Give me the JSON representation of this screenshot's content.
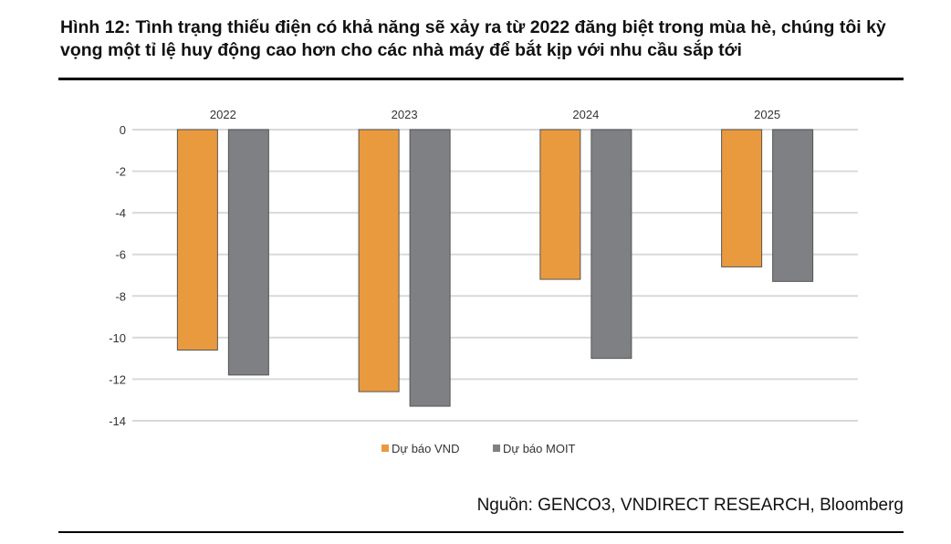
{
  "chart_data": {
    "type": "bar",
    "title": "Hình 12: Tình trạng thiếu điện có khả năng sẽ xảy ra từ 2022 đăng biệt trong mùa hè, chúng tôi kỳ vọng một tỉ lệ huy động cao hơn cho các nhà máy để bắt kịp với nhu cầu sắp tới",
    "categories": [
      "2022",
      "2023",
      "2024",
      "2025"
    ],
    "series": [
      {
        "name": "Dự báo VND",
        "values": [
          -10.6,
          -12.6,
          -7.2,
          -6.6
        ],
        "color": "#E99A3E"
      },
      {
        "name": "Dự báo MOIT",
        "values": [
          -11.8,
          -13.3,
          -11.0,
          -7.3
        ],
        "color": "#7F8083"
      }
    ],
    "ylim": [
      -14,
      0
    ],
    "yticks": [
      0,
      -2,
      -4,
      -6,
      -8,
      -10,
      -12,
      -14
    ],
    "grid": true,
    "category_labels_position": "top",
    "legend": "bottom",
    "xlabel": "",
    "ylabel": "",
    "source": "Nguồn: GENCO3, VNDIRECT RESEARCH, Bloomberg"
  }
}
